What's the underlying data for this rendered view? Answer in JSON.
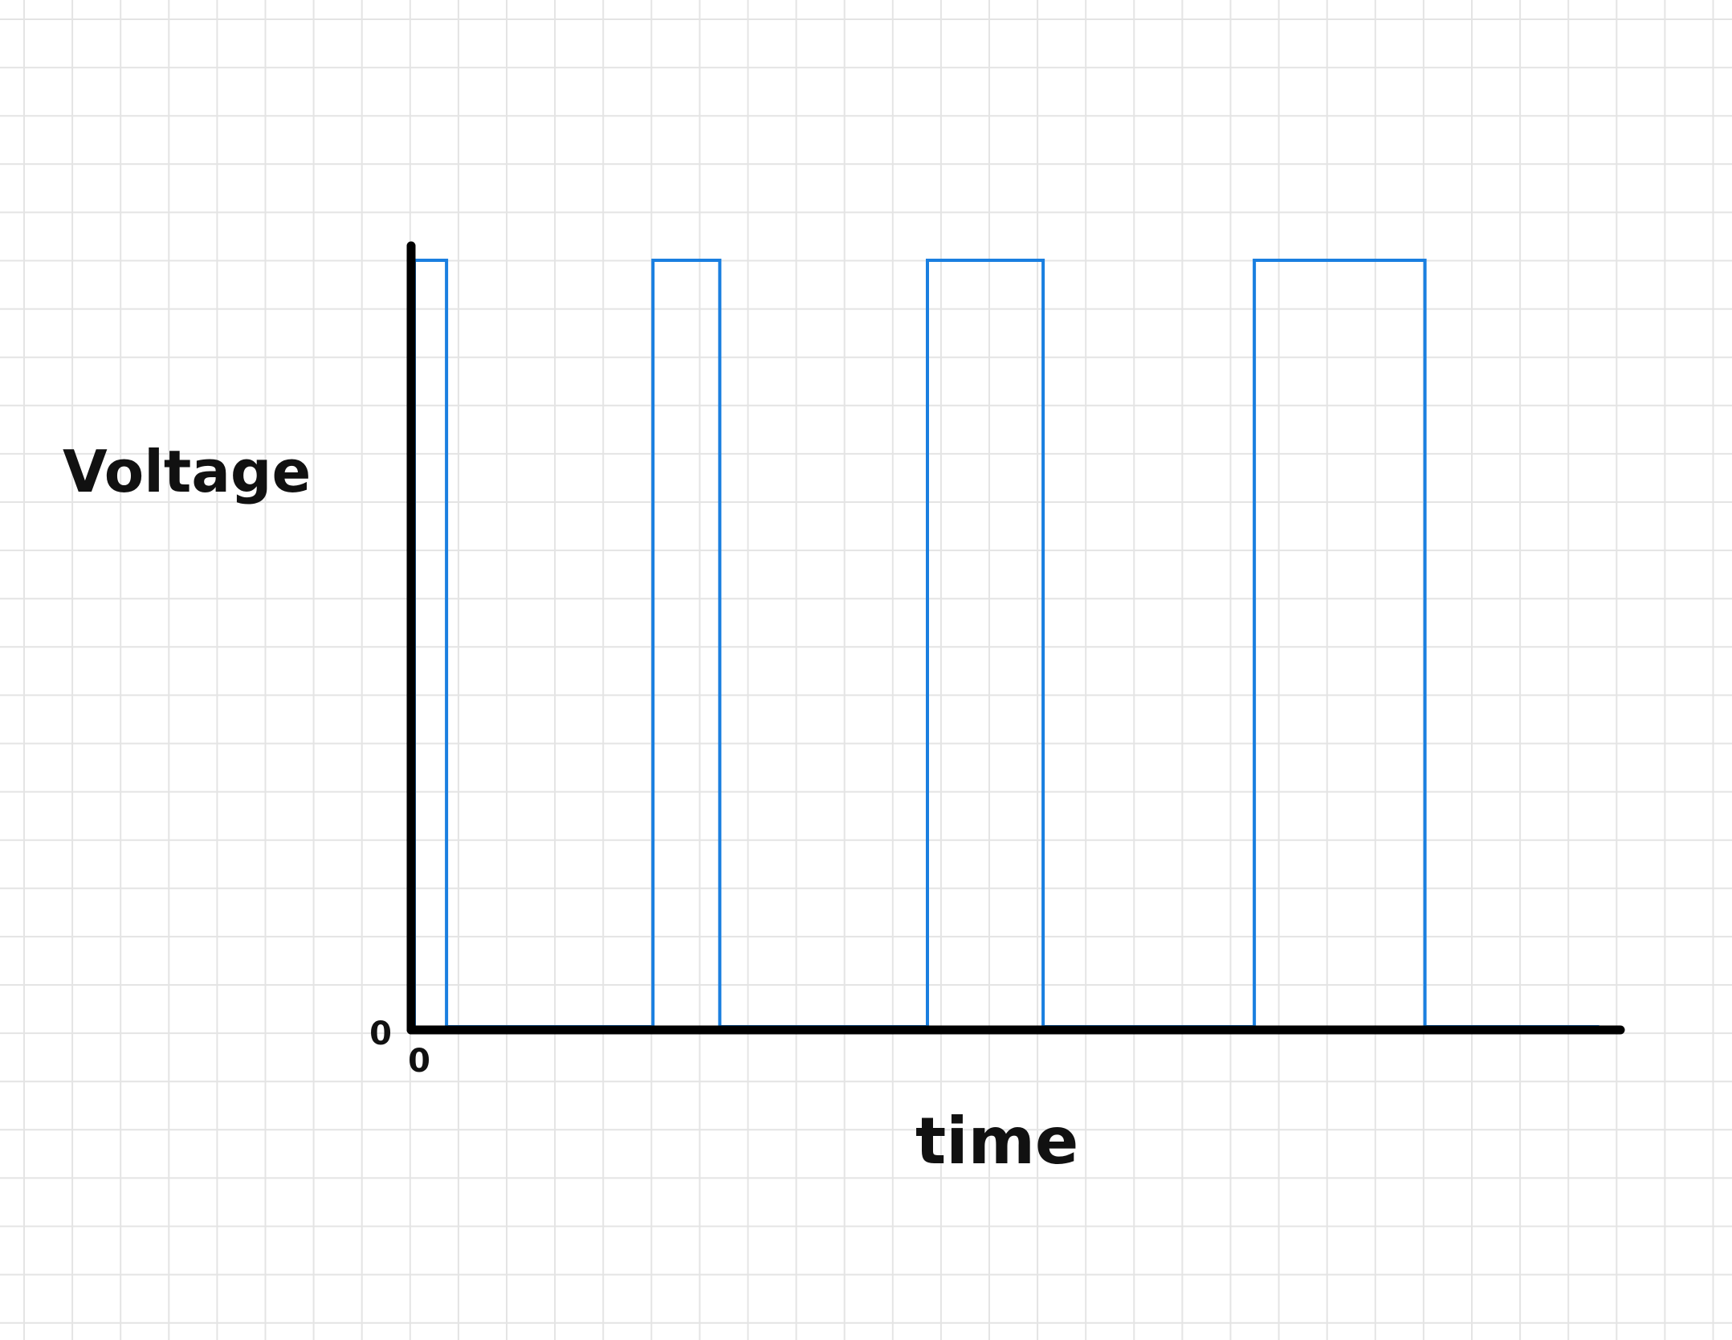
{
  "chart_data": {
    "type": "line",
    "title": "",
    "xlabel": "time",
    "ylabel": "Voltage",
    "x_origin_label": "0",
    "y_origin_label": "0",
    "x_ticks": [],
    "y_ticks": [],
    "grid": true,
    "legend": "none",
    "colors": {
      "series": "#1a7fe0",
      "axes": "#000000",
      "grid": "#e4e4e4",
      "text": "#111111"
    },
    "xlim": [
      0,
      100
    ],
    "ylim": [
      0,
      1
    ],
    "series": [
      {
        "x": [
          0,
          0,
          2.7,
          2.7,
          20,
          20,
          25.6,
          25.6,
          43,
          43,
          52.7,
          52.7,
          70.4,
          70.4,
          84.7,
          84.7,
          99.3
        ],
        "values": [
          0,
          1,
          1,
          0,
          0,
          1,
          1,
          0,
          0,
          1,
          1,
          0,
          0,
          1,
          1,
          0,
          0
        ]
      }
    ]
  }
}
